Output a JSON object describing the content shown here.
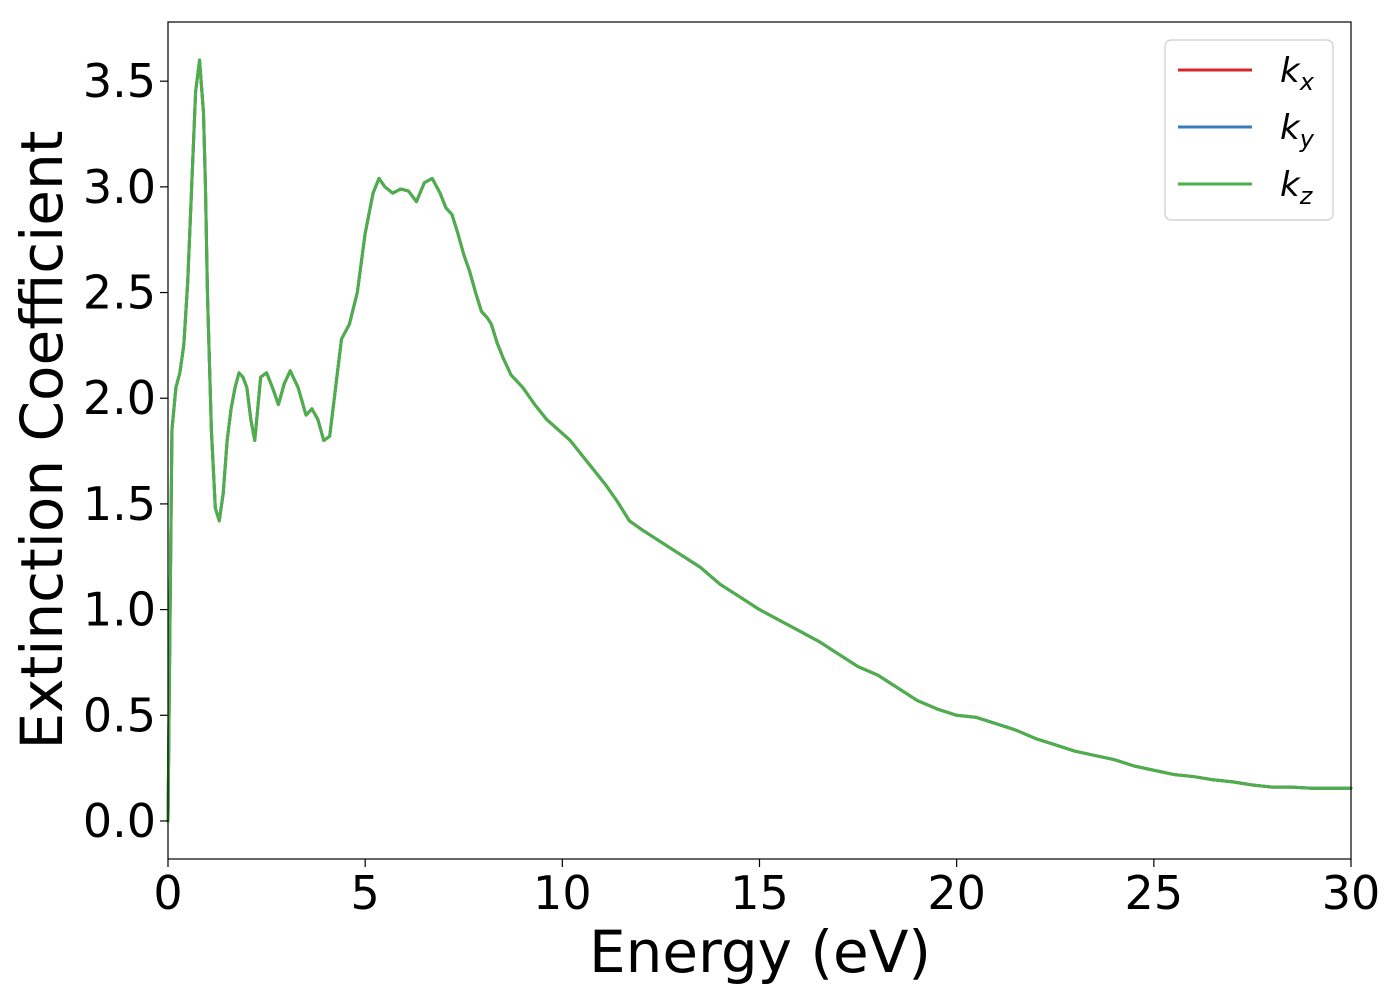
{
  "chart_data": {
    "type": "line",
    "title": "",
    "xlabel": "Energy (eV)",
    "ylabel": "Extinction Coefficient",
    "xlim": [
      0,
      30
    ],
    "ylim": [
      -0.18,
      3.78
    ],
    "xticks": [
      0,
      5,
      10,
      15,
      20,
      25,
      30
    ],
    "xtick_labels": [
      "0",
      "5",
      "10",
      "15",
      "20",
      "25",
      "30"
    ],
    "yticks": [
      0.0,
      0.5,
      1.0,
      1.5,
      2.0,
      2.5,
      3.0,
      3.5
    ],
    "ytick_labels": [
      "0.0",
      "0.5",
      "1.0",
      "1.5",
      "2.0",
      "2.5",
      "3.0",
      "3.5"
    ],
    "grid": false,
    "legend_position": "top-right",
    "x": [
      0,
      0.1,
      0.2,
      0.3,
      0.4,
      0.5,
      0.6,
      0.7,
      0.8,
      0.9,
      0.95,
      1.0,
      1.1,
      1.2,
      1.3,
      1.4,
      1.5,
      1.6,
      1.7,
      1.8,
      1.9,
      2.0,
      2.1,
      2.2,
      2.35,
      2.5,
      2.65,
      2.8,
      2.95,
      3.1,
      3.3,
      3.5,
      3.65,
      3.8,
      3.95,
      4.1,
      4.25,
      4.4,
      4.6,
      4.8,
      5.0,
      5.2,
      5.35,
      5.5,
      5.7,
      5.9,
      6.1,
      6.3,
      6.5,
      6.7,
      6.9,
      7.05,
      7.2,
      7.35,
      7.5,
      7.65,
      7.8,
      7.95,
      8.1,
      8.2,
      8.35,
      8.5,
      8.7,
      9.0,
      9.3,
      9.6,
      9.9,
      10.2,
      10.5,
      10.8,
      11.1,
      11.4,
      11.7,
      12.0,
      12.5,
      13.0,
      13.5,
      14.0,
      14.5,
      15.0,
      15.5,
      16.0,
      16.5,
      17.0,
      17.5,
      18.0,
      18.5,
      19.0,
      19.5,
      20.0,
      20.5,
      21.0,
      21.5,
      22.0,
      22.5,
      23.0,
      23.5,
      24.0,
      24.5,
      25.0,
      25.5,
      26.0,
      26.5,
      27.0,
      27.5,
      28.0,
      28.5,
      29.0,
      29.5,
      30.0
    ],
    "series": [
      {
        "name": "k_x",
        "label_main": "k",
        "label_sub": "x",
        "color": "#d62728",
        "values": [
          0.0,
          1.85,
          2.05,
          2.12,
          2.25,
          2.55,
          3.0,
          3.45,
          3.6,
          3.35,
          3.0,
          2.5,
          1.85,
          1.48,
          1.42,
          1.55,
          1.8,
          1.95,
          2.05,
          2.12,
          2.1,
          2.05,
          1.9,
          1.8,
          2.1,
          2.12,
          2.05,
          1.97,
          2.07,
          2.13,
          2.05,
          1.92,
          1.95,
          1.9,
          1.8,
          1.82,
          2.05,
          2.28,
          2.35,
          2.5,
          2.78,
          2.97,
          3.04,
          3.0,
          2.97,
          2.99,
          2.98,
          2.93,
          3.02,
          3.04,
          2.97,
          2.9,
          2.87,
          2.78,
          2.68,
          2.6,
          2.5,
          2.41,
          2.38,
          2.35,
          2.26,
          2.19,
          2.11,
          2.05,
          1.97,
          1.9,
          1.85,
          1.8,
          1.73,
          1.66,
          1.59,
          1.51,
          1.42,
          1.38,
          1.32,
          1.26,
          1.2,
          1.12,
          1.06,
          1.0,
          0.95,
          0.9,
          0.85,
          0.79,
          0.73,
          0.69,
          0.63,
          0.57,
          0.53,
          0.5,
          0.49,
          0.46,
          0.43,
          0.39,
          0.36,
          0.33,
          0.31,
          0.29,
          0.26,
          0.24,
          0.22,
          0.21,
          0.195,
          0.185,
          0.17,
          0.16,
          0.16,
          0.155,
          0.155,
          0.155
        ]
      },
      {
        "name": "k_y",
        "label_main": "k",
        "label_sub": "y",
        "color": "#377eb8",
        "values": [
          0.0,
          1.85,
          2.05,
          2.12,
          2.25,
          2.55,
          3.0,
          3.45,
          3.6,
          3.35,
          3.0,
          2.5,
          1.85,
          1.48,
          1.42,
          1.55,
          1.8,
          1.95,
          2.05,
          2.12,
          2.1,
          2.05,
          1.9,
          1.8,
          2.1,
          2.12,
          2.05,
          1.97,
          2.07,
          2.13,
          2.05,
          1.92,
          1.95,
          1.9,
          1.8,
          1.82,
          2.05,
          2.28,
          2.35,
          2.5,
          2.78,
          2.97,
          3.04,
          3.0,
          2.97,
          2.99,
          2.98,
          2.93,
          3.02,
          3.04,
          2.97,
          2.9,
          2.87,
          2.78,
          2.68,
          2.6,
          2.5,
          2.41,
          2.38,
          2.35,
          2.26,
          2.19,
          2.11,
          2.05,
          1.97,
          1.9,
          1.85,
          1.8,
          1.73,
          1.66,
          1.59,
          1.51,
          1.42,
          1.38,
          1.32,
          1.26,
          1.2,
          1.12,
          1.06,
          1.0,
          0.95,
          0.9,
          0.85,
          0.79,
          0.73,
          0.69,
          0.63,
          0.57,
          0.53,
          0.5,
          0.49,
          0.46,
          0.43,
          0.39,
          0.36,
          0.33,
          0.31,
          0.29,
          0.26,
          0.24,
          0.22,
          0.21,
          0.195,
          0.185,
          0.17,
          0.16,
          0.16,
          0.155,
          0.155,
          0.155
        ]
      },
      {
        "name": "k_z",
        "label_main": "k",
        "label_sub": "z",
        "color": "#4daf4a",
        "values": [
          0.0,
          1.85,
          2.05,
          2.12,
          2.25,
          2.55,
          3.0,
          3.45,
          3.6,
          3.35,
          3.0,
          2.5,
          1.85,
          1.48,
          1.42,
          1.55,
          1.8,
          1.95,
          2.05,
          2.12,
          2.1,
          2.05,
          1.9,
          1.8,
          2.1,
          2.12,
          2.05,
          1.97,
          2.07,
          2.13,
          2.05,
          1.92,
          1.95,
          1.9,
          1.8,
          1.82,
          2.05,
          2.28,
          2.35,
          2.5,
          2.78,
          2.97,
          3.04,
          3.0,
          2.97,
          2.99,
          2.98,
          2.93,
          3.02,
          3.04,
          2.97,
          2.9,
          2.87,
          2.78,
          2.68,
          2.6,
          2.5,
          2.41,
          2.38,
          2.35,
          2.26,
          2.19,
          2.11,
          2.05,
          1.97,
          1.9,
          1.85,
          1.8,
          1.73,
          1.66,
          1.59,
          1.51,
          1.42,
          1.38,
          1.32,
          1.26,
          1.2,
          1.12,
          1.06,
          1.0,
          0.95,
          0.9,
          0.85,
          0.79,
          0.73,
          0.69,
          0.63,
          0.57,
          0.53,
          0.5,
          0.49,
          0.46,
          0.43,
          0.39,
          0.36,
          0.33,
          0.31,
          0.29,
          0.26,
          0.24,
          0.22,
          0.21,
          0.195,
          0.185,
          0.17,
          0.16,
          0.16,
          0.155,
          0.155,
          0.155
        ]
      }
    ]
  }
}
